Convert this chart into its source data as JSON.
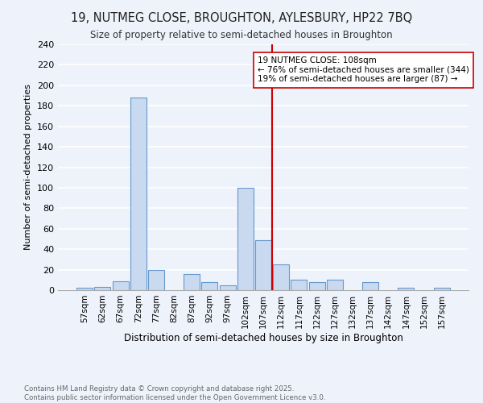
{
  "title": "19, NUTMEG CLOSE, BROUGHTON, AYLESBURY, HP22 7BQ",
  "subtitle": "Size of property relative to semi-detached houses in Broughton",
  "xlabel": "Distribution of semi-detached houses by size in Broughton",
  "ylabel": "Number of semi-detached properties",
  "footnote1": "Contains HM Land Registry data © Crown copyright and database right 2025.",
  "footnote2": "Contains public sector information licensed under the Open Government Licence v3.0.",
  "bar_color": "#c9d9f0",
  "bar_edgecolor": "#6699cc",
  "background_color": "#eef2fb",
  "gridcolor": "#ffffff",
  "vline_color": "#cc0000",
  "annotation_text": "19 NUTMEG CLOSE: 108sqm\n← 76% of semi-detached houses are smaller (344)\n19% of semi-detached houses are larger (87) →",
  "annotation_box_color": "#ffffff",
  "annotation_box_edgecolor": "#cc0000",
  "categories": [
    "57sqm",
    "62sqm",
    "67sqm",
    "72sqm",
    "77sqm",
    "82sqm",
    "87sqm",
    "92sqm",
    "97sqm",
    "102sqm",
    "107sqm",
    "112sqm",
    "117sqm",
    "122sqm",
    "127sqm",
    "132sqm",
    "137sqm",
    "142sqm",
    "147sqm",
    "152sqm",
    "157sqm"
  ],
  "values": [
    2,
    3,
    9,
    188,
    20,
    0,
    16,
    8,
    5,
    100,
    49,
    25,
    10,
    8,
    10,
    0,
    8,
    0,
    2,
    0,
    2
  ],
  "ylim": [
    0,
    240
  ],
  "yticks": [
    0,
    20,
    40,
    60,
    80,
    100,
    120,
    140,
    160,
    180,
    200,
    220,
    240
  ],
  "vline_idx": 10
}
